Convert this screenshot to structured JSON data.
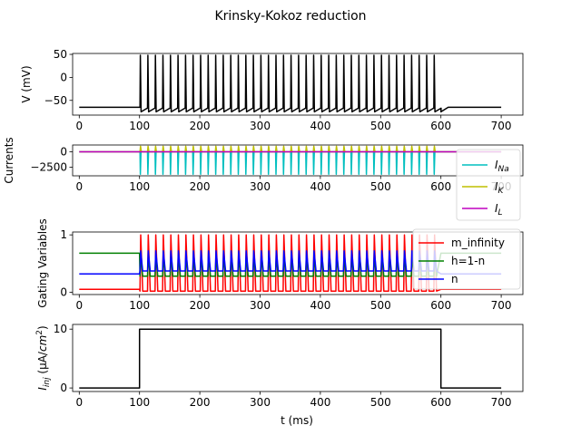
{
  "chart_data": {
    "title": "Krinsky-Kokoz reduction",
    "xlabel": "t (ms)",
    "xlim": [
      -11,
      736
    ],
    "xticks": [
      0,
      100,
      200,
      300,
      400,
      500,
      600,
      700
    ],
    "stimulus": {
      "on_ms": 100,
      "off_ms": 600,
      "spike_count": 40
    },
    "panels": [
      {
        "type": "line",
        "ylabel": "V (mV)",
        "ylim": [
          -82,
          52
        ],
        "yticks": [
          -50,
          0,
          50
        ],
        "grid": false,
        "series": [
          {
            "color": "#000000",
            "rest": -65,
            "peak": 48,
            "trough": -75
          }
        ]
      },
      {
        "type": "line",
        "ylabel": "Currents",
        "ylim": [
          -3900,
          1100
        ],
        "yticks": [
          -2500,
          0
        ],
        "grid": false,
        "legend": "right",
        "series": [
          {
            "name": "I_Na",
            "label_main": "I",
            "label_sub": "Na",
            "color": "#00bfbf",
            "rest": 0,
            "min": -3650,
            "max": 0
          },
          {
            "name": "I_K",
            "label_main": "I",
            "label_sub": "K",
            "color": "#bfbf00",
            "rest": 0,
            "min": 0,
            "max": 900
          },
          {
            "name": "I_L",
            "label_main": "I",
            "label_sub": "L",
            "color": "#bf00bf",
            "rest": 0,
            "min": 0,
            "max": 0
          }
        ]
      },
      {
        "type": "line",
        "ylabel": "Gating Variables",
        "ylim": [
          -0.04,
          1.05
        ],
        "yticks": [
          0,
          1
        ],
        "grid": false,
        "legend": "right",
        "series": [
          {
            "name": "m_infinity",
            "color": "#ff0000",
            "rest": 0.05,
            "min": 0.02,
            "max": 1.0
          },
          {
            "name": "h=1-n",
            "color": "#008000",
            "rest": 0.68,
            "min": 0.28,
            "max": 0.63
          },
          {
            "name": "n",
            "color": "#0000ff",
            "rest": 0.32,
            "min": 0.37,
            "max": 0.72
          }
        ]
      },
      {
        "type": "line",
        "ylabel_main": "I",
        "ylabel_sub": "inj",
        "ylabel_unit": " (μA/cm",
        "ylabel_sup": "2",
        "ylabel_close": ")",
        "ylim": [
          -0.6,
          10.8
        ],
        "yticks": [
          0,
          10
        ],
        "grid": false,
        "series": [
          {
            "color": "#000000",
            "steps": [
              [
                0,
                0
              ],
              [
                100,
                0
              ],
              [
                100,
                10
              ],
              [
                600,
                10
              ],
              [
                600,
                0
              ],
              [
                700,
                0
              ]
            ]
          }
        ]
      }
    ]
  }
}
